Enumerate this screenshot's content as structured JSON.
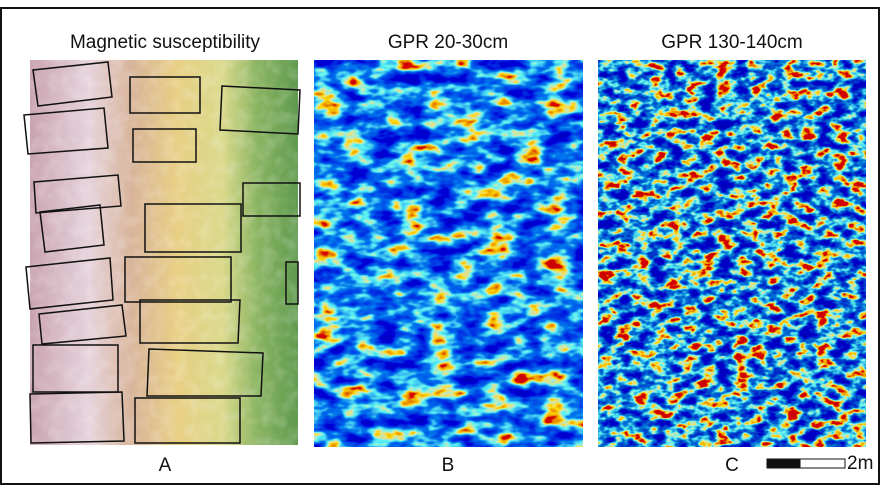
{
  "panels": [
    {
      "title": "Magnetic susceptibility",
      "letter": "A"
    },
    {
      "title": "GPR 20-30cm",
      "letter": "B"
    },
    {
      "title": "GPR 130-140cm",
      "letter": "C"
    }
  ],
  "scale_bar": {
    "label": "2m"
  }
}
